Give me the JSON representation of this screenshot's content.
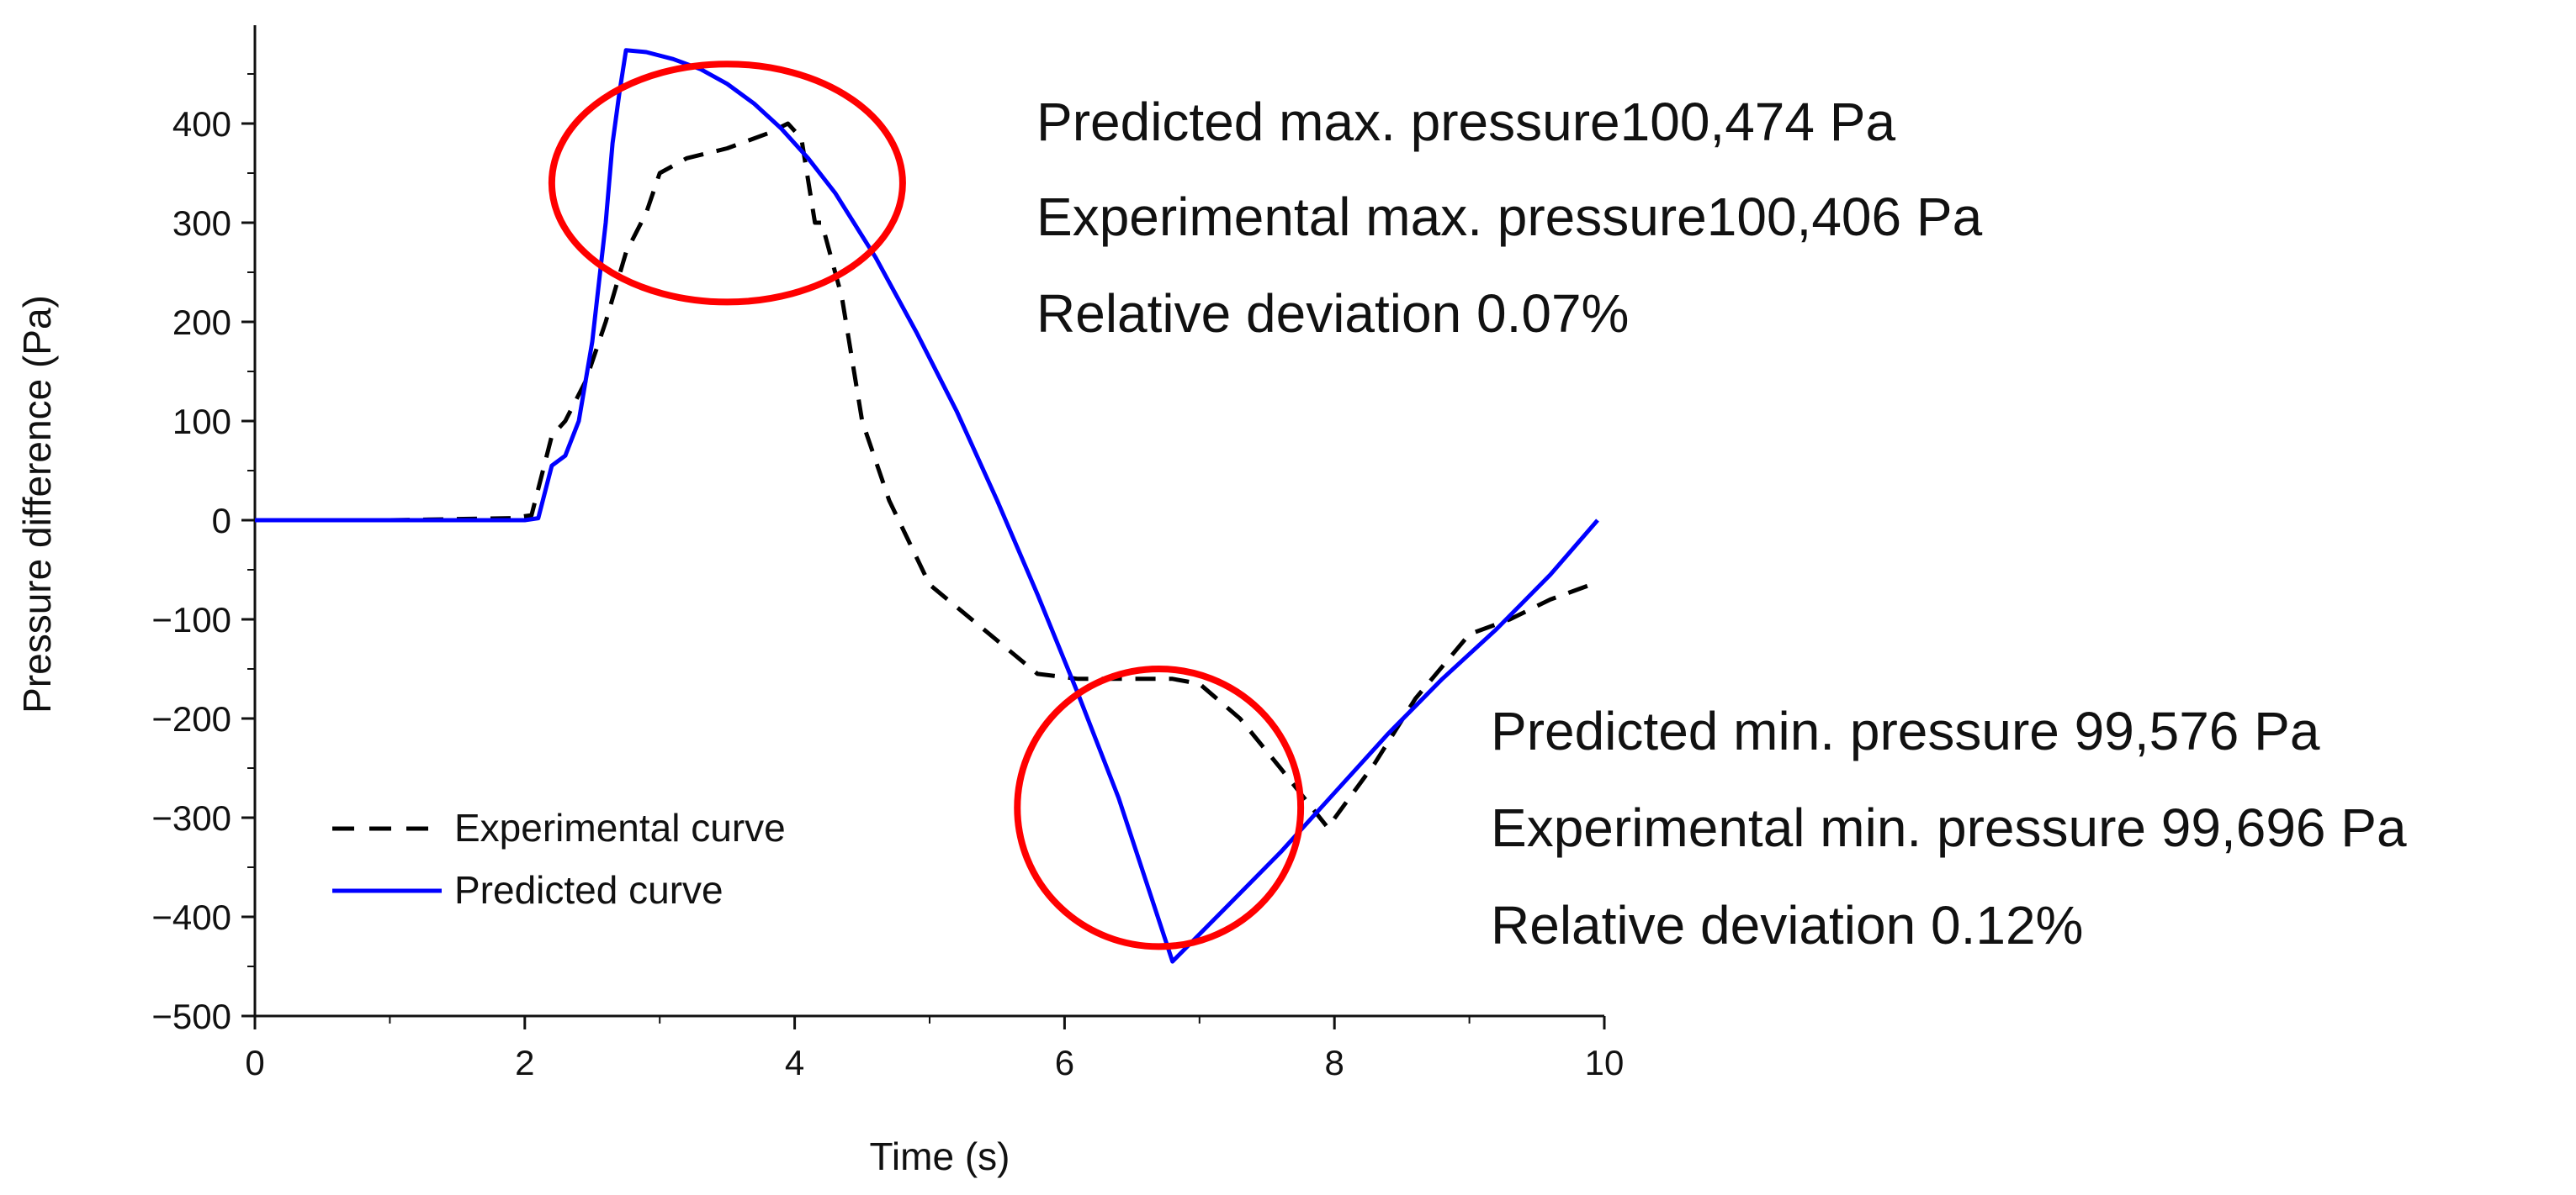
{
  "chart_data": {
    "type": "line",
    "title": "",
    "xlabel": "Time (s)",
    "ylabel": "Pressure difference (Pa)",
    "xlim": [
      0,
      10
    ],
    "ylim": [
      -500,
      500
    ],
    "xticks": [
      0,
      2,
      4,
      6,
      8,
      10
    ],
    "yticks": [
      -500,
      -400,
      -300,
      -200,
      -100,
      0,
      100,
      200,
      300,
      400
    ],
    "grid": false,
    "legend_position": "bottom-left",
    "series": [
      {
        "name": "Experimental curve",
        "style": "dashed",
        "color": "#000000",
        "x": [
          0,
          1.0,
          1.9,
          2.05,
          2.2,
          2.3,
          2.45,
          2.6,
          2.75,
          2.9,
          3.0,
          3.2,
          3.5,
          3.8,
          3.95,
          4.05,
          4.15,
          4.2,
          4.35,
          4.5,
          4.7,
          5.0,
          5.4,
          5.8,
          6.1,
          6.4,
          6.8,
          7.0,
          7.3,
          7.6,
          7.95,
          8.3,
          8.6,
          9.0,
          9.3,
          9.6,
          9.9
        ],
        "values": [
          0,
          0,
          2,
          5,
          85,
          100,
          140,
          200,
          270,
          310,
          350,
          365,
          375,
          390,
          400,
          385,
          300,
          300,
          225,
          100,
          20,
          -65,
          -110,
          -155,
          -160,
          -160,
          -160,
          -165,
          -200,
          -250,
          -310,
          -245,
          -180,
          -115,
          -100,
          -80,
          -65
        ]
      },
      {
        "name": "Predicted curve",
        "style": "solid",
        "color": "#0000ff",
        "x": [
          0,
          2.0,
          2.1,
          2.2,
          2.3,
          2.4,
          2.5,
          2.6,
          2.65,
          2.7,
          2.75,
          2.9,
          3.1,
          3.3,
          3.5,
          3.7,
          3.9,
          4.1,
          4.3,
          4.6,
          4.9,
          5.2,
          5.5,
          5.8,
          6.1,
          6.4,
          6.8,
          7.2,
          7.6,
          8.0,
          8.4,
          8.8,
          9.2,
          9.6,
          9.95
        ],
        "values": [
          0,
          0,
          2,
          55,
          65,
          100,
          180,
          300,
          380,
          430,
          474,
          472,
          465,
          455,
          440,
          420,
          395,
          365,
          330,
          265,
          190,
          110,
          20,
          -75,
          -175,
          -280,
          -445,
          -390,
          -335,
          -275,
          -215,
          -160,
          -110,
          -55,
          0
        ]
      }
    ],
    "annotations": {
      "max_lines": [
        "Predicted max. pressure100,474 Pa",
        "Experimental max. pressure100,406 Pa",
        "Relative deviation 0.07%"
      ],
      "min_lines": [
        "Predicted min. pressure 99,576 Pa",
        "Experimental min. pressure 99,696 Pa",
        "Relative deviation 0.12%"
      ],
      "max_circle": {
        "center_data": [
          3.5,
          340
        ],
        "radius_x_data": 1.3,
        "radius_y_data": 120,
        "color": "#ff0000"
      },
      "min_circle": {
        "center_data": [
          6.7,
          -290
        ],
        "radius_x_data": 1.05,
        "radius_y_data": 140,
        "color": "#ff0000"
      }
    }
  }
}
